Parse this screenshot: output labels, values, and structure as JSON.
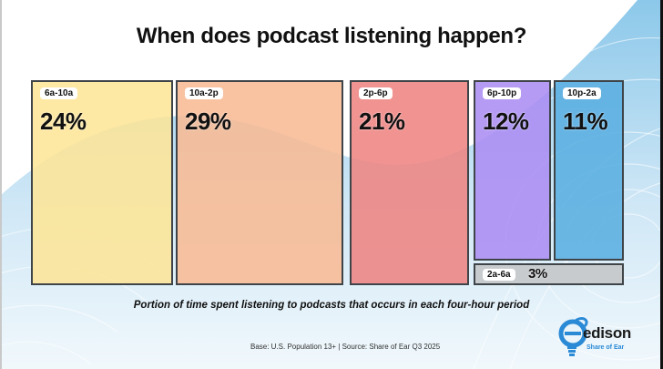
{
  "title": "When does podcast listening happen?",
  "subtitle": "Portion of time spent listening to podcasts that occurs in each four-hour period",
  "source": "Base: U.S. Population 13+ | Source: Share of Ear Q3 2025",
  "logo": {
    "brand": "edison",
    "tagline": "Share of Ear",
    "icon": "edison-lightbulb-logo-icon"
  },
  "colors": {
    "accent_blue": "#5aaee0",
    "text": "#111111",
    "box_border": "#3f4448"
  },
  "chart_data": {
    "type": "treemap",
    "title": "When does podcast listening happen?",
    "subtitle": "Portion of time spent listening to podcasts that occurs in each four-hour period",
    "unit": "%",
    "categories": [
      "6a-10a",
      "10a-2p",
      "2p-6p",
      "6p-10p",
      "10p-2a",
      "2a-6a"
    ],
    "values": [
      24,
      29,
      21,
      12,
      11,
      3
    ],
    "labels": [
      "24%",
      "29%",
      "21%",
      "12%",
      "11%",
      "3%"
    ],
    "colors": [
      "#fde597",
      "#f8bb94",
      "#ee8482",
      "#ac8df2",
      "#5aaee0",
      "#c5c8ca"
    ],
    "source": "Base: U.S. Population 13+ | Source: Share of Ear Q3 2025"
  }
}
